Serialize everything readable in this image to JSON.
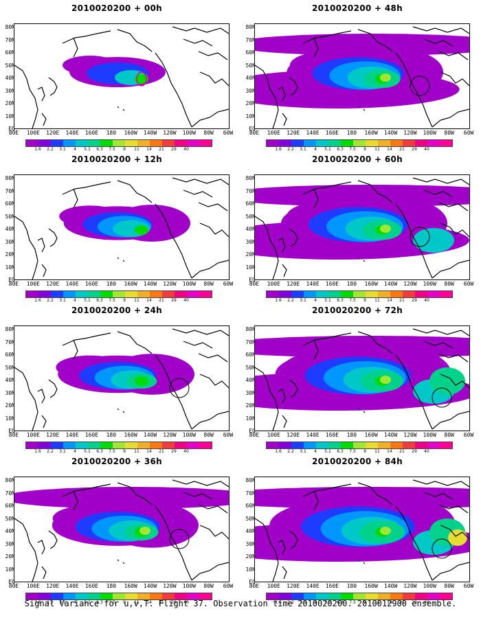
{
  "panels": [
    {
      "title": "2010020200 + 00h",
      "level": 1
    },
    {
      "title": "2010020200 + 48h",
      "level": 5
    },
    {
      "title": "2010020200 + 12h",
      "level": 2
    },
    {
      "title": "2010020200 + 60h",
      "level": 6
    },
    {
      "title": "2010020200 + 24h",
      "level": 3
    },
    {
      "title": "2010020200 + 72h",
      "level": 7
    },
    {
      "title": "2010020200 + 36h",
      "level": 4
    },
    {
      "title": "2010020200 + 84h",
      "level": 8
    }
  ],
  "lat_labels": [
    "80N",
    "70N",
    "60N",
    "50N",
    "40N",
    "30N",
    "20N",
    "10N",
    "EQ"
  ],
  "lon_labels": [
    "80E",
    "100E",
    "120E",
    "140E",
    "160E",
    "180",
    "160W",
    "140W",
    "120W",
    "100W",
    "80W",
    "60W"
  ],
  "colorbar": {
    "labels": [
      "1.6",
      "2.2",
      "3.1",
      "4",
      "5.1",
      "6.3",
      "7.5",
      "9",
      "11",
      "14",
      "21",
      "29",
      "40"
    ],
    "colors": [
      "#a000c8",
      "#8200dc",
      "#1e3cff",
      "#0096ff",
      "#00c8c8",
      "#00d28c",
      "#00dc00",
      "#a0e632",
      "#e6dc32",
      "#f0af28",
      "#fa7814",
      "#f03c3c",
      "#f00082"
    ]
  },
  "caption": "Signal Variance for u,v,T. Flight 37. Observation time 2010020200. 2010012900 ensemble."
}
